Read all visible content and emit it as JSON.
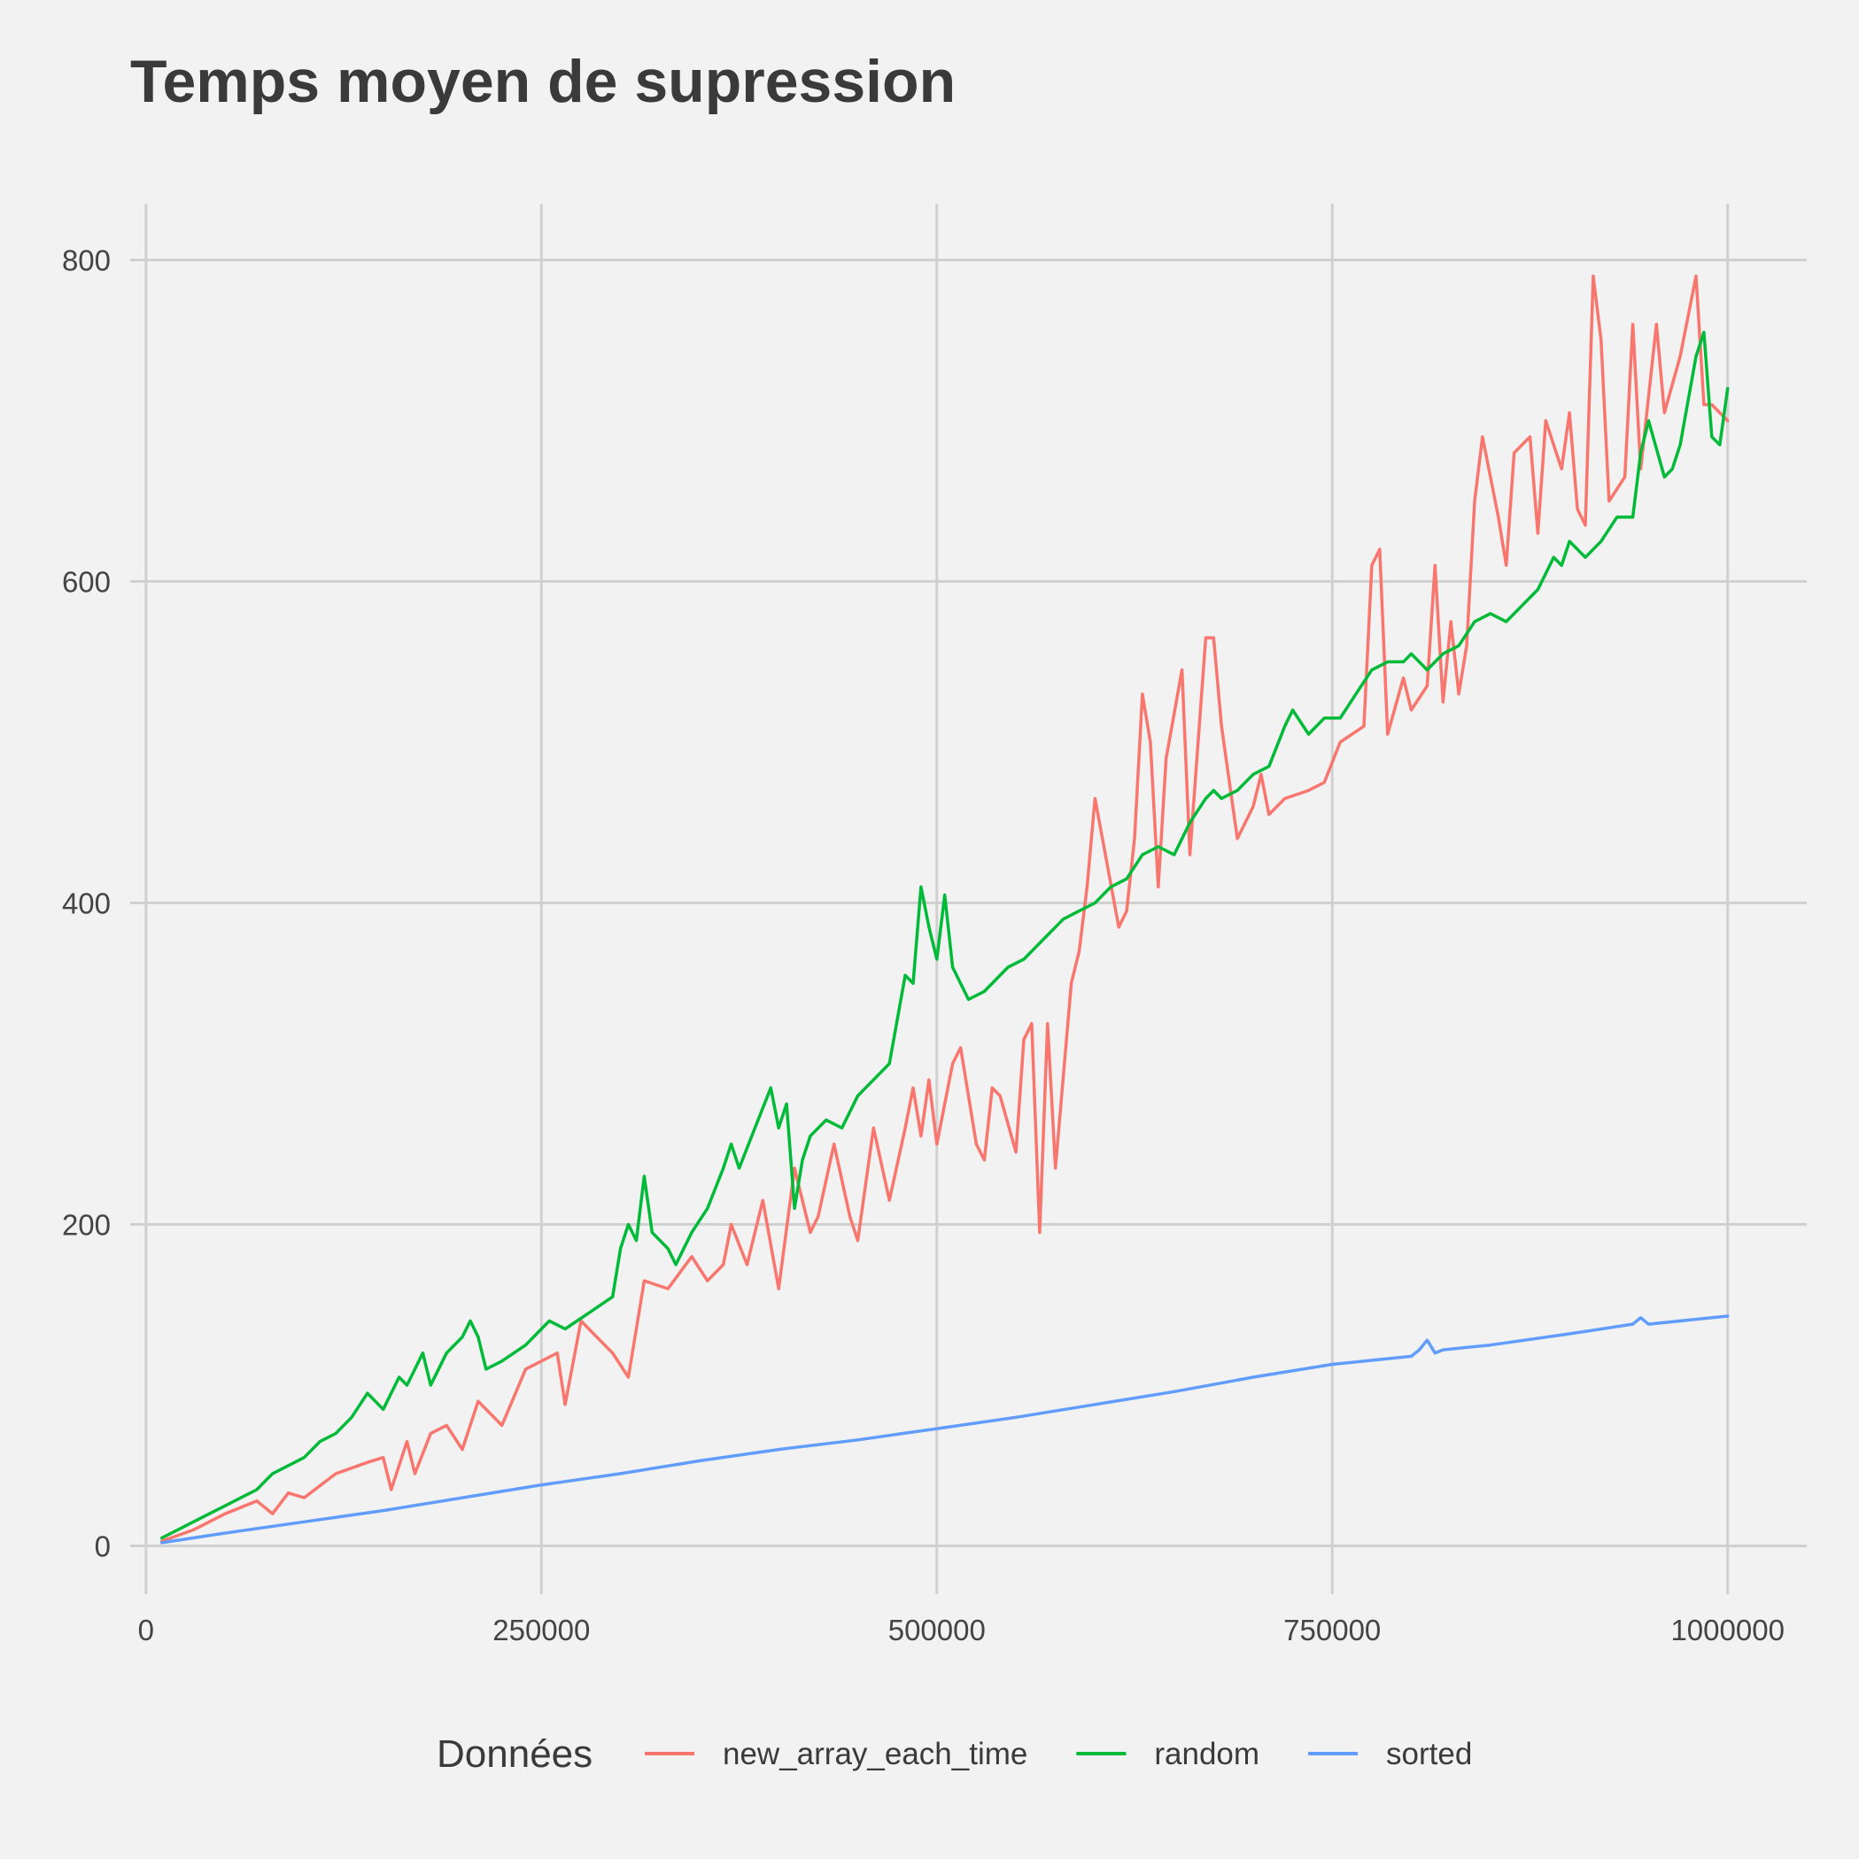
{
  "chart_data": {
    "type": "line",
    "title": "Temps moyen de supression",
    "xlabel": "",
    "ylabel": "",
    "xlim": [
      -10000,
      1050000
    ],
    "ylim": [
      -30,
      835
    ],
    "x_ticks": [
      0,
      250000,
      500000,
      750000,
      1000000
    ],
    "x_tick_labels": [
      "0",
      "250000",
      "500000",
      "750000",
      "1000000"
    ],
    "y_ticks": [
      0,
      200,
      400,
      600,
      800
    ],
    "y_tick_labels": [
      "0",
      "200",
      "400",
      "600",
      "800"
    ],
    "grid": true,
    "legend": {
      "title": "Données",
      "position": "bottom"
    },
    "series": [
      {
        "name": "new_array_each_time",
        "color": "#f8766d",
        "x": [
          10000,
          30000,
          50000,
          70000,
          80000,
          90000,
          100000,
          120000,
          140000,
          150000,
          155000,
          165000,
          170000,
          180000,
          190000,
          200000,
          210000,
          225000,
          240000,
          260000,
          265000,
          275000,
          285000,
          295000,
          305000,
          315000,
          330000,
          345000,
          355000,
          365000,
          370000,
          380000,
          390000,
          400000,
          410000,
          420000,
          425000,
          435000,
          445000,
          450000,
          460000,
          470000,
          480000,
          485000,
          490000,
          495000,
          500000,
          510000,
          515000,
          525000,
          530000,
          535000,
          540000,
          550000,
          555000,
          560000,
          565000,
          570000,
          575000,
          585000,
          590000,
          595000,
          600000,
          615000,
          620000,
          625000,
          630000,
          635000,
          640000,
          645000,
          655000,
          660000,
          670000,
          675000,
          680000,
          690000,
          700000,
          705000,
          710000,
          720000,
          735000,
          745000,
          755000,
          770000,
          775000,
          780000,
          785000,
          795000,
          800000,
          810000,
          815000,
          820000,
          825000,
          830000,
          835000,
          840000,
          845000,
          855000,
          860000,
          865000,
          875000,
          880000,
          885000,
          895000,
          900000,
          905000,
          910000,
          915000,
          920000,
          925000,
          935000,
          940000,
          945000,
          955000,
          960000,
          970000,
          980000,
          985000,
          990000,
          995000,
          1000000
        ],
        "values": [
          3,
          10,
          20,
          28,
          20,
          33,
          30,
          45,
          52,
          55,
          35,
          65,
          45,
          70,
          75,
          60,
          90,
          75,
          110,
          120,
          88,
          140,
          130,
          120,
          105,
          165,
          160,
          180,
          165,
          175,
          200,
          175,
          215,
          160,
          235,
          195,
          205,
          250,
          205,
          190,
          260,
          215,
          260,
          285,
          255,
          290,
          250,
          300,
          310,
          250,
          240,
          285,
          280,
          245,
          315,
          325,
          195,
          325,
          235,
          350,
          370,
          410,
          465,
          385,
          395,
          440,
          530,
          500,
          410,
          490,
          545,
          430,
          565,
          565,
          510,
          440,
          460,
          480,
          455,
          465,
          470,
          475,
          500,
          510,
          610,
          620,
          505,
          540,
          520,
          535,
          610,
          525,
          575,
          530,
          560,
          650,
          690,
          640,
          610,
          680,
          690,
          630,
          700,
          670,
          705,
          645,
          635,
          790,
          750,
          650,
          665,
          760,
          670,
          760,
          705,
          740,
          790,
          710,
          710,
          705,
          700
        ]
      },
      {
        "name": "random",
        "color": "#00ba38",
        "x": [
          10000,
          20000,
          30000,
          40000,
          50000,
          60000,
          70000,
          75000,
          80000,
          90000,
          100000,
          110000,
          120000,
          130000,
          140000,
          145000,
          150000,
          160000,
          165000,
          170000,
          175000,
          180000,
          190000,
          200000,
          205000,
          210000,
          215000,
          225000,
          240000,
          255000,
          265000,
          280000,
          295000,
          300000,
          305000,
          310000,
          315000,
          320000,
          330000,
          335000,
          345000,
          355000,
          365000,
          370000,
          375000,
          385000,
          395000,
          400000,
          405000,
          410000,
          415000,
          420000,
          430000,
          440000,
          450000,
          460000,
          470000,
          480000,
          485000,
          490000,
          495000,
          500000,
          505000,
          510000,
          520000,
          530000,
          545000,
          555000,
          565000,
          580000,
          590000,
          600000,
          610000,
          620000,
          630000,
          640000,
          650000,
          660000,
          670000,
          675000,
          680000,
          690000,
          700000,
          710000,
          720000,
          725000,
          735000,
          745000,
          755000,
          765000,
          775000,
          785000,
          795000,
          800000,
          810000,
          820000,
          830000,
          840000,
          850000,
          860000,
          870000,
          880000,
          890000,
          895000,
          900000,
          910000,
          920000,
          930000,
          940000,
          945000,
          950000,
          960000,
          965000,
          970000,
          980000,
          985000,
          990000,
          995000,
          1000000
        ],
        "values": [
          5,
          10,
          15,
          20,
          25,
          30,
          35,
          40,
          45,
          50,
          55,
          65,
          70,
          80,
          95,
          90,
          85,
          105,
          100,
          110,
          120,
          100,
          120,
          130,
          140,
          130,
          110,
          115,
          125,
          140,
          135,
          145,
          155,
          185,
          200,
          190,
          230,
          195,
          185,
          175,
          195,
          210,
          235,
          250,
          235,
          260,
          285,
          260,
          275,
          210,
          240,
          255,
          265,
          260,
          280,
          290,
          300,
          355,
          350,
          410,
          385,
          365,
          405,
          360,
          340,
          345,
          360,
          365,
          375,
          390,
          395,
          400,
          410,
          415,
          430,
          435,
          430,
          450,
          465,
          470,
          465,
          470,
          480,
          485,
          510,
          520,
          505,
          515,
          515,
          530,
          545,
          550,
          550,
          555,
          545,
          555,
          560,
          575,
          580,
          575,
          585,
          595,
          615,
          610,
          625,
          615,
          625,
          640,
          640,
          680,
          700,
          665,
          670,
          685,
          740,
          755,
          690,
          685,
          720
        ]
      },
      {
        "name": "sorted",
        "color": "#619cff",
        "x": [
          10000,
          50000,
          100000,
          150000,
          200000,
          250000,
          300000,
          350000,
          400000,
          450000,
          500000,
          550000,
          600000,
          650000,
          700000,
          750000,
          800000,
          805000,
          810000,
          815000,
          820000,
          850000,
          900000,
          940000,
          945000,
          950000,
          1000000
        ],
        "values": [
          2,
          8,
          15,
          22,
          30,
          38,
          45,
          53,
          60,
          66,
          73,
          80,
          88,
          96,
          105,
          113,
          118,
          122,
          128,
          120,
          122,
          125,
          132,
          138,
          142,
          138,
          143
        ]
      }
    ]
  }
}
